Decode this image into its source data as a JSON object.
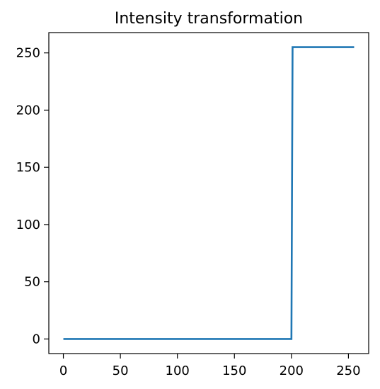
{
  "chart_data": {
    "type": "line",
    "title": "Intensity transformation",
    "xlabel": "",
    "ylabel": "",
    "xlim": [
      -12.75,
      267.75
    ],
    "ylim": [
      -12.75,
      267.75
    ],
    "x_ticks": [
      0,
      50,
      100,
      150,
      200,
      250
    ],
    "y_ticks": [
      0,
      50,
      100,
      150,
      200,
      250
    ],
    "grid": false,
    "series": [
      {
        "color": "#1f77b4",
        "x": [
          0,
          200,
          201,
          255
        ],
        "y": [
          0,
          0,
          255,
          255
        ]
      }
    ]
  }
}
